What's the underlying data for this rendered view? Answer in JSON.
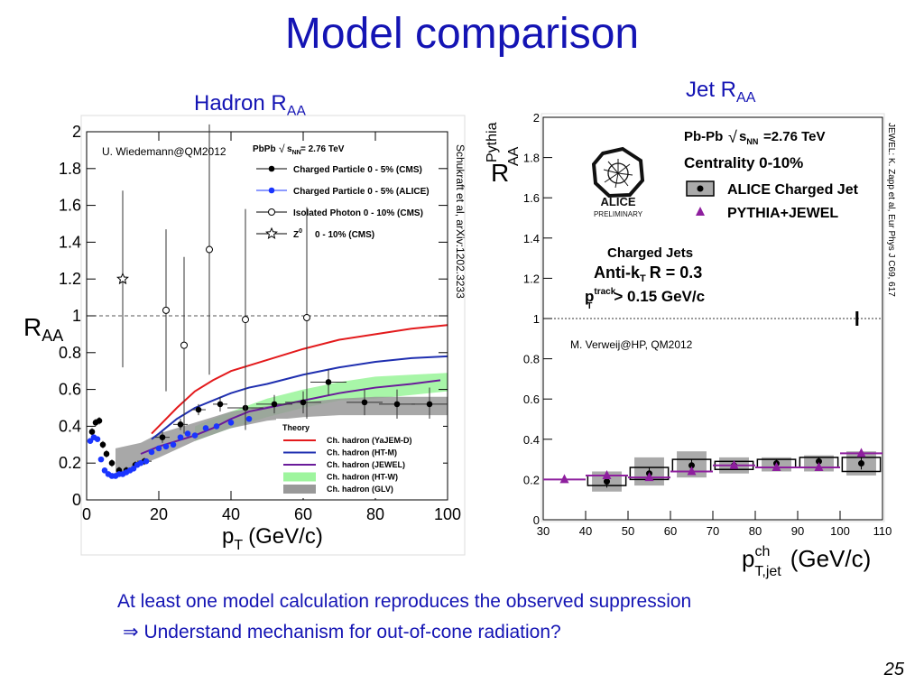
{
  "slide": {
    "title": "Model comparison",
    "left_heading": "Hadron R",
    "left_heading_sub": "AA",
    "right_heading": "Jet R",
    "right_heading_sub": "AA",
    "bottom_line1": "At least one model calculation reproduces the observed suppression",
    "bottom_arrow": "⇒",
    "bottom_line2": "Understand mechanism for out-of-cone radiation?",
    "page_number": "25"
  },
  "chart_data": [
    {
      "type": "line",
      "credit": "U. Wiedemann@QM2012",
      "side_reference": "Schukraft et al, arXiv:1202.3233",
      "system_label": "PbPb",
      "system_energy": "= 2.76 TeV",
      "xlabel": "p",
      "xlabel_sub": "T",
      "xlabel_unit": "(GeV/c)",
      "ylabel": "R",
      "ylabel_sub": "AA",
      "xlim": [
        0,
        100
      ],
      "ylim": [
        0,
        2
      ],
      "xticks": [
        "0",
        "20",
        "40",
        "60",
        "80",
        "100"
      ],
      "yticks": [
        "0",
        "0.2",
        "0.4",
        "0.6",
        "0.8",
        "1",
        "1.2",
        "1.4",
        "1.6",
        "1.8",
        "2"
      ],
      "reference_line": 1,
      "theory_title": "Theory",
      "legend": [
        {
          "name": "Charged Particle 0 - 5% (CMS)",
          "marker": "filled-circle",
          "color": "#000000"
        },
        {
          "name": "Charged Particle 0 - 5% (ALICE)",
          "marker": "filled-circle",
          "color": "#1a35ff"
        },
        {
          "name": "Isolated Photon 0 - 10% (CMS)",
          "marker": "open-circle",
          "color": "#000000"
        },
        {
          "name": "Z",
          "name_sup": "0",
          "name_rest": "0 - 10% (CMS)",
          "marker": "open-star",
          "color": "#000000"
        }
      ],
      "theory_legend": [
        {
          "name": "Ch. hadron (YaJEM-D)",
          "color": "#e31a1c",
          "style": "line"
        },
        {
          "name": "Ch. hadron (HT-M)",
          "color": "#1f2fb0",
          "style": "line"
        },
        {
          "name": "Ch. hadron (JEWEL)",
          "color": "#6a1b9a",
          "style": "line"
        },
        {
          "name": "Ch. hadron (HT-W)",
          "color": "#9ef59e",
          "style": "band"
        },
        {
          "name": "Ch. hadron (GLV)",
          "color": "#999999",
          "style": "band"
        }
      ],
      "series": [
        {
          "name": "Charged Particle 0 - 5% (CMS)",
          "color": "#000000",
          "x": [
            1.5,
            2.5,
            3.5,
            4.5,
            5.5,
            7,
            9,
            11,
            13.5,
            16,
            21,
            26,
            31,
            37,
            44,
            52,
            60,
            67,
            77,
            86,
            95
          ],
          "y": [
            0.37,
            0.42,
            0.43,
            0.3,
            0.25,
            0.2,
            0.16,
            0.16,
            0.19,
            0.21,
            0.34,
            0.41,
            0.49,
            0.52,
            0.5,
            0.52,
            0.53,
            0.64,
            0.53,
            0.52,
            0.52
          ],
          "yerr": [
            0.02,
            0.02,
            0.02,
            0.02,
            0.02,
            0.02,
            0.02,
            0.02,
            0.02,
            0.02,
            0.03,
            0.03,
            0.03,
            0.04,
            0.05,
            0.05,
            0.06,
            0.07,
            0.07,
            0.08,
            0.09
          ]
        },
        {
          "name": "Charged Particle 0 - 5% (ALICE)",
          "color": "#1a35ff",
          "x": [
            1,
            2,
            3,
            4,
            5,
            6,
            7,
            8,
            9,
            10,
            11,
            12,
            13,
            14,
            15,
            16.5,
            18,
            20,
            22,
            24,
            26,
            28,
            30,
            33,
            36,
            40,
            45
          ],
          "y": [
            0.32,
            0.34,
            0.33,
            0.22,
            0.16,
            0.14,
            0.13,
            0.13,
            0.14,
            0.14,
            0.15,
            0.16,
            0.17,
            0.19,
            0.2,
            0.21,
            0.26,
            0.28,
            0.29,
            0.3,
            0.34,
            0.36,
            0.35,
            0.39,
            0.4,
            0.42,
            0.44
          ]
        },
        {
          "name": "Isolated Photon 0 - 10% (CMS)",
          "color": "#000000",
          "x": [
            22,
            27,
            34,
            44,
            61
          ],
          "y": [
            1.03,
            0.84,
            1.36,
            0.98,
            0.99
          ],
          "yerr": [
            0.22,
            0.24,
            0.34,
            0.3,
            0.3
          ]
        },
        {
          "name": "Z 0 - 10% (CMS)",
          "color": "#000000",
          "x": [
            10
          ],
          "y": [
            1.2
          ],
          "yerr": [
            0.24
          ]
        },
        {
          "name": "Ch. hadron (YaJEM-D)",
          "color": "#e31a1c",
          "x": [
            18,
            20,
            25,
            30,
            35,
            40,
            45,
            50,
            60,
            70,
            80,
            90,
            100
          ],
          "y": [
            0.36,
            0.4,
            0.5,
            0.59,
            0.65,
            0.7,
            0.73,
            0.76,
            0.82,
            0.87,
            0.9,
            0.93,
            0.95
          ]
        },
        {
          "name": "Ch. hadron (HT-M)",
          "color": "#1f2fb0",
          "x": [
            18,
            20,
            25,
            30,
            35,
            40,
            45,
            50,
            60,
            70,
            80,
            90,
            100
          ],
          "y": [
            0.33,
            0.36,
            0.44,
            0.5,
            0.54,
            0.58,
            0.61,
            0.63,
            0.68,
            0.72,
            0.75,
            0.77,
            0.78
          ]
        },
        {
          "name": "Ch. hadron (JEWEL)",
          "color": "#6a1b9a",
          "x": [
            15,
            20,
            25,
            30,
            35,
            40,
            45,
            50,
            60,
            70,
            80,
            90,
            98
          ],
          "y": [
            0.25,
            0.29,
            0.32,
            0.35,
            0.39,
            0.44,
            0.48,
            0.5,
            0.54,
            0.58,
            0.61,
            0.63,
            0.65
          ]
        },
        {
          "name": "Ch. hadron (HT-W)",
          "color": "#9ef59e",
          "x": [
            30,
            40,
            50,
            60,
            70,
            80,
            90,
            100
          ],
          "ylow": [
            0.32,
            0.39,
            0.45,
            0.5,
            0.54,
            0.55,
            0.57,
            0.59
          ],
          "yhigh": [
            0.4,
            0.48,
            0.55,
            0.6,
            0.64,
            0.67,
            0.68,
            0.69
          ]
        },
        {
          "name": "Ch. hadron (GLV)",
          "color": "#999999",
          "x": [
            8,
            15,
            20,
            30,
            40,
            50,
            60,
            70,
            80,
            90,
            100
          ],
          "ylow": [
            0.14,
            0.19,
            0.23,
            0.32,
            0.39,
            0.43,
            0.45,
            0.46,
            0.46,
            0.46,
            0.46
          ],
          "yhigh": [
            0.28,
            0.31,
            0.36,
            0.42,
            0.48,
            0.51,
            0.53,
            0.55,
            0.56,
            0.56,
            0.56
          ]
        }
      ]
    },
    {
      "type": "scatter",
      "credit": "M. Verweij@HP, QM2012",
      "side_reference": "JEWEL: K. Zapp et al, Eur Phys J C69, 617",
      "header_system": "Pb-Pb",
      "header_energy": "=2.76 TeV",
      "header_centrality": "Centrality 0-10%",
      "logo_label": "ALICE",
      "logo_sublabel": "PRELIMINARY",
      "legend": [
        {
          "name": "ALICE Charged Jet",
          "marker": "filled-circle-box",
          "color": "#000000"
        },
        {
          "name": "PYTHIA+JEWEL",
          "marker": "triangle",
          "color": "#8e1f9e"
        }
      ],
      "jet_label_1": "Charged Jets",
      "jet_label_2": "Anti-k",
      "jet_label_2_sub": "T",
      "jet_label_2_rest": "R = 0.3",
      "jet_label_3": "p",
      "jet_label_3_sup": "track",
      "jet_label_3_sub": "T",
      "jet_label_3_rest": "> 0.15 GeV/c",
      "xlabel": "p",
      "xlabel_sup": "ch",
      "xlabel_sub": "T,jet",
      "xlabel_unit": "(GeV/c)",
      "ylabel": "R",
      "ylabel_sup": "Pythia",
      "ylabel_sub": "AA",
      "xlim": [
        30,
        110
      ],
      "ylim": [
        0,
        2
      ],
      "xticks": [
        "30",
        "40",
        "50",
        "60",
        "70",
        "80",
        "90",
        "100",
        "110"
      ],
      "yticks": [
        "0",
        "0.2",
        "0.4",
        "0.6",
        "0.8",
        "1",
        "1.2",
        "1.4",
        "1.6",
        "1.8",
        "2"
      ],
      "reference_line": 1,
      "series": [
        {
          "name": "ALICE Charged Jet",
          "color": "#000000",
          "x": [
            45,
            55,
            65,
            75,
            85,
            95,
            105
          ],
          "y": [
            0.19,
            0.23,
            0.27,
            0.27,
            0.28,
            0.29,
            0.28
          ],
          "yerr": [
            0.03,
            0.03,
            0.03,
            0.02,
            0.02,
            0.02,
            0.03
          ],
          "sys_low": [
            0.14,
            0.17,
            0.21,
            0.23,
            0.24,
            0.24,
            0.22
          ],
          "sys_high": [
            0.24,
            0.31,
            0.34,
            0.31,
            0.31,
            0.32,
            0.34
          ],
          "box_low": [
            0.17,
            0.2,
            0.24,
            0.25,
            0.26,
            0.26,
            0.24
          ],
          "box_high": [
            0.22,
            0.26,
            0.3,
            0.29,
            0.3,
            0.31,
            0.31
          ]
        },
        {
          "name": "PYTHIA+JEWEL",
          "color": "#8e1f9e",
          "x": [
            35,
            45,
            55,
            65,
            75,
            85,
            95,
            105
          ],
          "y": [
            0.2,
            0.22,
            0.21,
            0.24,
            0.27,
            0.26,
            0.26,
            0.33
          ]
        }
      ],
      "marker_at_1": {
        "x": 104,
        "y": 1.0
      }
    }
  ]
}
